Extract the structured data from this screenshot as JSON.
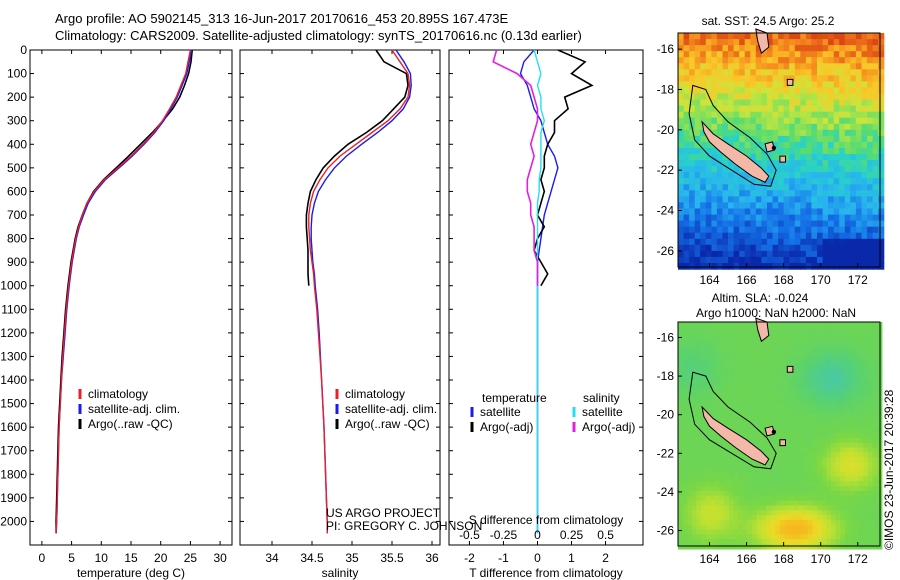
{
  "header": {
    "line1": "Argo profile: AO 5902145_313 16-Jun-2017 20170616_453 20.895S 167.473E",
    "line2": "Climatology: CARS2009. Satellite-adjusted climatology: synTS_20170616.nc (0.13d earlier)"
  },
  "colors": {
    "climatology": "#e8202a",
    "satellite": "#1a1aee",
    "argo": "#000000",
    "cyan": "#22e0ee",
    "magenta": "#e020e0",
    "land": "#f4b8a8"
  },
  "footer": {
    "project": "US ARGO PROJECT",
    "pi": "PI: GREGORY C. JOHNSON"
  },
  "stamp": "©IMOS 23-Jun-2017 20:39:28",
  "chart_data": [
    {
      "id": "temperature-profile",
      "type": "line",
      "xlabel": "temperature (deg C)",
      "ylabel": "",
      "xlim": [
        -2,
        32
      ],
      "ylim": [
        2100,
        0
      ],
      "xticks": [
        0,
        5,
        10,
        15,
        20,
        25,
        30
      ],
      "yticks": [
        0,
        100,
        200,
        300,
        400,
        500,
        600,
        700,
        800,
        900,
        1000,
        1100,
        1200,
        1300,
        1400,
        1500,
        1600,
        1700,
        1800,
        1900,
        2000
      ],
      "legend": [
        "climatology",
        "satellite-adj. clim.",
        "Argo(..raw -QC)"
      ],
      "legend_position": "lower-middle",
      "depth": [
        0,
        50,
        100,
        150,
        200,
        250,
        300,
        350,
        400,
        450,
        500,
        550,
        600,
        650,
        700,
        750,
        800,
        900,
        1000,
        1100,
        1200,
        1300,
        1400,
        1500,
        1600,
        1700,
        1800,
        1900,
        2000,
        2050
      ],
      "series": [
        {
          "name": "climatology",
          "values": [
            25.0,
            24.6,
            24.2,
            23.4,
            22.6,
            21.5,
            20.3,
            18.8,
            17.0,
            15.0,
            12.8,
            10.5,
            8.8,
            7.6,
            6.8,
            6.2,
            5.7,
            5.0,
            4.5,
            4.1,
            3.8,
            3.5,
            3.3,
            3.1,
            2.9,
            2.8,
            2.7,
            2.6,
            2.5,
            2.4
          ]
        },
        {
          "name": "satellite",
          "values": [
            25.2,
            24.8,
            24.4,
            23.6,
            22.8,
            21.7,
            20.5,
            19.0,
            17.2,
            15.2,
            13.0,
            10.7,
            9.0,
            7.8,
            7.0,
            6.3,
            5.8,
            5.1,
            4.6,
            4.2,
            3.9,
            3.6,
            3.3,
            3.1,
            2.9,
            2.8,
            2.7,
            2.6,
            2.5,
            2.4
          ]
        },
        {
          "name": "argo",
          "values": [
            25.3,
            25.1,
            24.7,
            24.0,
            23.2,
            22.0,
            20.4,
            18.6,
            16.6,
            14.6,
            12.5,
            10.4,
            8.7,
            7.6,
            6.8,
            6.1,
            5.6,
            4.9,
            4.4,
            4.0,
            3.7,
            3.4,
            3.2,
            3.0,
            2.8,
            2.7,
            2.6,
            2.5,
            2.4,
            2.4
          ]
        }
      ]
    },
    {
      "id": "salinity-profile",
      "type": "line",
      "xlabel": "salinity",
      "xlim": [
        33.6,
        36.1
      ],
      "ylim": [
        2100,
        0
      ],
      "xticks": [
        34,
        34.5,
        35,
        35.5,
        36
      ],
      "legend": [
        "climatology",
        "satellite-adj. clim.",
        "Argo(..raw -QC)"
      ],
      "legend_position": "lower-middle",
      "depth": [
        0,
        50,
        100,
        150,
        200,
        250,
        300,
        350,
        400,
        450,
        500,
        550,
        600,
        650,
        700,
        750,
        800,
        850,
        900,
        950,
        1000,
        1100,
        1200,
        1400,
        1600,
        1800,
        2000,
        2050
      ],
      "series": [
        {
          "name": "climatology",
          "values": [
            35.5,
            35.6,
            35.7,
            35.72,
            35.7,
            35.6,
            35.45,
            35.25,
            35.05,
            34.85,
            34.7,
            34.6,
            34.52,
            34.48,
            34.46,
            34.46,
            34.47,
            34.48,
            34.5,
            34.52,
            34.53,
            34.56,
            34.58,
            34.62,
            34.65,
            34.67,
            34.69,
            34.69
          ]
        },
        {
          "name": "satellite",
          "values": [
            35.55,
            35.65,
            35.73,
            35.74,
            35.72,
            35.64,
            35.5,
            35.32,
            35.12,
            34.93,
            34.78,
            34.67,
            34.58,
            34.53,
            34.5,
            34.49,
            34.49,
            34.5,
            34.51,
            34.53,
            34.54,
            34.57,
            34.59,
            34.62,
            34.65,
            34.67,
            34.69,
            34.69
          ]
        },
        {
          "name": "argo",
          "values": [
            35.3,
            35.4,
            35.68,
            35.7,
            35.66,
            35.52,
            35.38,
            35.18,
            34.95,
            34.78,
            34.64,
            34.55,
            34.48,
            34.45,
            34.43,
            34.43,
            34.44,
            34.45,
            34.45,
            34.45,
            34.46,
            null,
            null,
            null,
            null,
            null,
            null,
            null
          ]
        }
      ]
    },
    {
      "id": "difference-profile",
      "type": "line",
      "xlabel": "T difference from climatology",
      "xlabel_top": "S difference from climatology",
      "xlim": [
        -2.6,
        3.1
      ],
      "ylim": [
        2100,
        0
      ],
      "xticks": [
        -2,
        -1,
        0,
        1,
        2
      ],
      "xticks_top": [
        {
          "label": "-0.5",
          "at": -2.0
        },
        {
          "label": "-0.25",
          "at": -1.0
        },
        {
          "label": "0",
          "at": 0.0
        },
        {
          "label": "0.25",
          "at": 1.0
        },
        {
          "label": "0.5",
          "at": 2.0
        }
      ],
      "legend_temperature_title": "temperature",
      "legend_salinity_title": "salinity",
      "legend": [
        "satellite",
        "Argo(-adj)",
        "satellite",
        "Argo(-adj)"
      ],
      "depth": [
        0,
        50,
        100,
        150,
        200,
        250,
        300,
        350,
        400,
        450,
        500,
        550,
        600,
        650,
        700,
        750,
        800,
        850,
        900,
        950,
        1000,
        1100,
        1400,
        1700,
        2000,
        2050
      ],
      "series": [
        {
          "name": "T satellite",
          "values": [
            -0.1,
            -0.4,
            -0.5,
            -0.3,
            -0.2,
            -0.1,
            0.1,
            0.2,
            0.3,
            0.5,
            0.6,
            0.5,
            0.4,
            0.3,
            0.2,
            0.15,
            0.1,
            0.05,
            0.0,
            0.0,
            0.0,
            0.0,
            0.0,
            0.0,
            0.0,
            0.0
          ]
        },
        {
          "name": "T argo",
          "values": [
            0.6,
            1.4,
            1.0,
            1.6,
            0.8,
            0.9,
            0.5,
            0.5,
            0.3,
            0.2,
            0.2,
            0.1,
            0.2,
            0.1,
            0.0,
            0.2,
            0.0,
            -0.1,
            0.1,
            0.3,
            0.1,
            null,
            null,
            null,
            null,
            null
          ]
        },
        {
          "name": "S satellite",
          "values": [
            -0.1,
            0.0,
            0.1,
            0.0,
            0.1,
            0.1,
            0.2,
            0.1,
            0.1,
            0.1,
            0.1,
            0.05,
            0.05,
            0.0,
            0.0,
            0.0,
            0.0,
            0.0,
            0.0,
            0.0,
            0.0,
            0.0,
            0.0,
            0.0,
            0.0,
            0.0
          ]
        },
        {
          "name": "S argo",
          "values": [
            -1.2,
            -1.3,
            -0.6,
            -0.2,
            -0.1,
            0.0,
            0.0,
            -0.1,
            -0.2,
            -0.1,
            -0.2,
            -0.3,
            -0.3,
            -0.2,
            -0.2,
            -0.1,
            -0.1,
            -0.1,
            0.0,
            0.0,
            0.0,
            null,
            null,
            null,
            null,
            null
          ]
        }
      ]
    },
    {
      "id": "sst-map",
      "type": "heatmap",
      "title": "sat. SST: 24.5 Argo: 25.2",
      "xlim": [
        162.3,
        173.2
      ],
      "ylim": [
        -26.8,
        -15.2
      ],
      "xticks": [
        164,
        166,
        168,
        170,
        172
      ],
      "yticks": [
        -16,
        -18,
        -20,
        -22,
        -24,
        -26
      ],
      "argo_position": {
        "lon": 167.473,
        "lat": -20.895
      }
    },
    {
      "id": "sla-map",
      "type": "heatmap",
      "title": "Altim. SLA: -0.024",
      "subtitle": "Argo h1000: NaN h2000: NaN",
      "xlim": [
        162.3,
        173.2
      ],
      "ylim": [
        -26.8,
        -15.2
      ],
      "xticks": [
        164,
        166,
        168,
        170,
        172
      ],
      "yticks": [
        -16,
        -18,
        -20,
        -22,
        -24,
        -26
      ],
      "argo_position": {
        "lon": 167.473,
        "lat": -20.895
      }
    }
  ]
}
